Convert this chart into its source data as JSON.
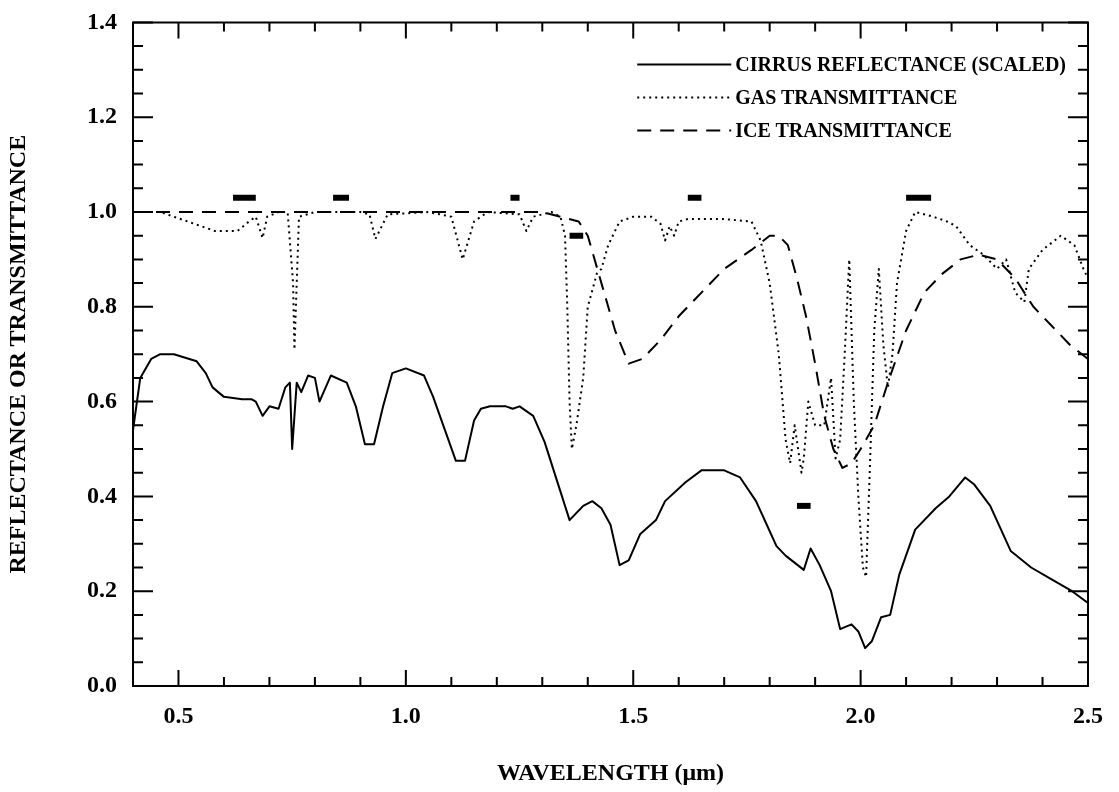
{
  "chart_data": {
    "type": "line",
    "xlabel": "WAVELENGTH (μm)",
    "ylabel": "REFLECTANCE OR TRANSMITTANCE",
    "xlim": [
      0.4,
      2.5
    ],
    "ylim": [
      0,
      1.4
    ],
    "xticks": [
      {
        "value": 0.4,
        "label": null
      },
      {
        "value": 0.5,
        "label": "0.5"
      },
      {
        "value": 0.6,
        "label": null
      },
      {
        "value": 0.7,
        "label": null
      },
      {
        "value": 0.8,
        "label": null
      },
      {
        "value": 0.9,
        "label": null
      },
      {
        "value": 1.0,
        "label": "1.0"
      },
      {
        "value": 1.1,
        "label": null
      },
      {
        "value": 1.2,
        "label": null
      },
      {
        "value": 1.3,
        "label": null
      },
      {
        "value": 1.4,
        "label": null
      },
      {
        "value": 1.5,
        "label": "1.5"
      },
      {
        "value": 1.6,
        "label": null
      },
      {
        "value": 1.7,
        "label": null
      },
      {
        "value": 1.8,
        "label": null
      },
      {
        "value": 1.9,
        "label": null
      },
      {
        "value": 2.0,
        "label": "2.0"
      },
      {
        "value": 2.1,
        "label": null
      },
      {
        "value": 2.2,
        "label": null
      },
      {
        "value": 2.3,
        "label": null
      },
      {
        "value": 2.4,
        "label": null
      },
      {
        "value": 2.5,
        "label": "2.5"
      }
    ],
    "yticks": [
      {
        "value": 0,
        "label": "0.0"
      },
      {
        "value": 0.05,
        "label": null
      },
      {
        "value": 0.1,
        "label": null
      },
      {
        "value": 0.15,
        "label": null
      },
      {
        "value": 0.2,
        "label": "0.2"
      },
      {
        "value": 0.25,
        "label": null
      },
      {
        "value": 0.3,
        "label": null
      },
      {
        "value": 0.35,
        "label": null
      },
      {
        "value": 0.4,
        "label": "0.4"
      },
      {
        "value": 0.45,
        "label": null
      },
      {
        "value": 0.5,
        "label": null
      },
      {
        "value": 0.55,
        "label": null
      },
      {
        "value": 0.6,
        "label": "0.6"
      },
      {
        "value": 0.65,
        "label": null
      },
      {
        "value": 0.7,
        "label": null
      },
      {
        "value": 0.75,
        "label": null
      },
      {
        "value": 0.8,
        "label": "0.8"
      },
      {
        "value": 0.85,
        "label": null
      },
      {
        "value": 0.9,
        "label": null
      },
      {
        "value": 0.95,
        "label": null
      },
      {
        "value": 1.0,
        "label": "1.0"
      },
      {
        "value": 1.05,
        "label": null
      },
      {
        "value": 1.1,
        "label": null
      },
      {
        "value": 1.15,
        "label": null
      },
      {
        "value": 1.2,
        "label": "1.2"
      },
      {
        "value": 1.25,
        "label": null
      },
      {
        "value": 1.3,
        "label": null
      },
      {
        "value": 1.35,
        "label": null
      },
      {
        "value": 1.4,
        "label": "1.4"
      }
    ],
    "grid": false,
    "legend": "top right",
    "marker": "none",
    "series": [
      {
        "name": "CIRRUS REFLECTANCE (SCALED)",
        "color": "#000000",
        "line_style": "solid",
        "x": [
          0.4,
          0.416,
          0.44,
          0.46,
          0.49,
          0.54,
          0.56,
          0.575,
          0.6,
          0.64,
          0.66,
          0.67,
          0.685,
          0.7,
          0.72,
          0.735,
          0.745,
          0.75,
          0.76,
          0.77,
          0.785,
          0.8,
          0.81,
          0.835,
          0.87,
          0.89,
          0.91,
          0.93,
          0.95,
          0.97,
          1.0,
          1.04,
          1.06,
          1.11,
          1.13,
          1.15,
          1.165,
          1.185,
          1.22,
          1.235,
          1.25,
          1.28,
          1.305,
          1.34,
          1.36,
          1.39,
          1.41,
          1.43,
          1.45,
          1.47,
          1.49,
          1.515,
          1.55,
          1.57,
          1.615,
          1.65,
          1.7,
          1.735,
          1.77,
          1.815,
          1.835,
          1.875,
          1.89,
          1.91,
          1.935,
          1.955,
          1.98,
          1.995,
          2.01,
          2.025,
          2.045,
          2.065,
          2.085,
          2.12,
          2.165,
          2.195,
          2.23,
          2.25,
          2.285,
          2.33,
          2.375,
          2.42,
          2.465,
          2.5
        ],
        "values": [
          0.54,
          0.65,
          0.69,
          0.7,
          0.7,
          0.685,
          0.66,
          0.63,
          0.61,
          0.605,
          0.605,
          0.6,
          0.57,
          0.59,
          0.585,
          0.63,
          0.64,
          0.5,
          0.64,
          0.62,
          0.655,
          0.65,
          0.6,
          0.655,
          0.64,
          0.59,
          0.51,
          0.51,
          0.59,
          0.66,
          0.67,
          0.655,
          0.61,
          0.475,
          0.475,
          0.56,
          0.585,
          0.59,
          0.59,
          0.585,
          0.59,
          0.57,
          0.515,
          0.41,
          0.35,
          0.38,
          0.39,
          0.375,
          0.34,
          0.255,
          0.265,
          0.32,
          0.35,
          0.39,
          0.43,
          0.455,
          0.455,
          0.44,
          0.39,
          0.295,
          0.275,
          0.245,
          0.29,
          0.255,
          0.2,
          0.12,
          0.13,
          0.115,
          0.08,
          0.095,
          0.145,
          0.15,
          0.235,
          0.33,
          0.375,
          0.4,
          0.44,
          0.425,
          0.38,
          0.285,
          0.25,
          0.225,
          0.2,
          0.175
        ]
      },
      {
        "name": "GAS TRANSMITTANCE",
        "color": "#000000",
        "line_style": "dotted",
        "x": [
          0.4,
          0.46,
          0.52,
          0.58,
          0.63,
          0.655,
          0.67,
          0.685,
          0.695,
          0.72,
          0.74,
          0.752,
          0.755,
          0.765,
          0.8,
          0.9,
          0.92,
          0.933,
          0.96,
          1.05,
          1.1,
          1.125,
          1.15,
          1.18,
          1.25,
          1.265,
          1.28,
          1.32,
          1.34,
          1.35,
          1.355,
          1.36,
          1.365,
          1.375,
          1.39,
          1.4,
          1.42,
          1.43,
          1.445,
          1.47,
          1.5,
          1.54,
          1.56,
          1.57,
          1.58,
          1.59,
          1.6,
          1.62,
          1.7,
          1.76,
          1.78,
          1.8,
          1.82,
          1.835,
          1.845,
          1.855,
          1.87,
          1.875,
          1.885,
          1.9,
          1.92,
          1.935,
          1.945,
          1.955,
          1.965,
          1.975,
          1.985,
          1.995,
          2.005,
          2.012,
          2.02,
          2.03,
          2.04,
          2.05,
          2.06,
          2.07,
          2.08,
          2.1,
          2.12,
          2.16,
          2.19,
          2.21,
          2.24,
          2.27,
          2.3,
          2.32,
          2.34,
          2.36,
          2.37,
          2.4,
          2.44,
          2.47,
          2.49,
          2.5
        ],
        "values": [
          1.0,
          1.0,
          0.98,
          0.96,
          0.96,
          0.98,
          0.99,
          0.945,
          0.99,
          1.0,
          1.0,
          0.85,
          0.71,
          0.99,
          1.0,
          1.0,
          0.995,
          0.943,
          0.995,
          1.0,
          0.99,
          0.9,
          0.98,
          1.0,
          0.995,
          0.96,
          0.99,
          1.0,
          0.99,
          0.95,
          0.8,
          0.6,
          0.5,
          0.55,
          0.65,
          0.8,
          0.87,
          0.88,
          0.93,
          0.98,
          0.99,
          0.99,
          0.975,
          0.94,
          0.97,
          0.95,
          0.98,
          0.985,
          0.985,
          0.98,
          0.94,
          0.85,
          0.7,
          0.52,
          0.47,
          0.55,
          0.45,
          0.48,
          0.6,
          0.55,
          0.55,
          0.65,
          0.48,
          0.52,
          0.7,
          0.9,
          0.6,
          0.4,
          0.25,
          0.23,
          0.45,
          0.75,
          0.88,
          0.72,
          0.63,
          0.7,
          0.85,
          0.96,
          1.0,
          0.99,
          0.98,
          0.97,
          0.93,
          0.91,
          0.88,
          0.9,
          0.83,
          0.81,
          0.88,
          0.92,
          0.95,
          0.93,
          0.88,
          0.86
        ]
      },
      {
        "name": "ICE TRANSMITTANCE",
        "color": "#000000",
        "line_style": "dashed",
        "x": [
          0.4,
          1.3,
          1.38,
          1.4,
          1.43,
          1.46,
          1.49,
          1.52,
          1.56,
          1.6,
          1.65,
          1.7,
          1.76,
          1.8,
          1.82,
          1.84,
          1.86,
          1.88,
          1.9,
          1.92,
          1.94,
          1.96,
          1.98,
          2.0,
          2.03,
          2.06,
          2.1,
          2.14,
          2.18,
          2.22,
          2.26,
          2.3,
          2.34,
          2.38,
          2.42,
          2.46,
          2.5
        ],
        "values": [
          1.0,
          1.0,
          0.98,
          0.95,
          0.85,
          0.75,
          0.68,
          0.69,
          0.73,
          0.78,
          0.83,
          0.88,
          0.92,
          0.95,
          0.95,
          0.93,
          0.86,
          0.78,
          0.68,
          0.57,
          0.5,
          0.46,
          0.47,
          0.5,
          0.55,
          0.64,
          0.75,
          0.83,
          0.87,
          0.9,
          0.91,
          0.9,
          0.86,
          0.8,
          0.76,
          0.72,
          0.69
        ]
      },
      {
        "color": "#000000",
        "line_style": "solid",
        "x": [
          0.62,
          0.67
        ],
        "values": [
          1.03,
          1.03
        ]
      },
      {
        "color": "#000000",
        "line_style": "solid",
        "x": [
          0.84,
          0.875
        ],
        "values": [
          1.03,
          1.03
        ]
      },
      {
        "color": "#000000",
        "line_style": "solid",
        "x": [
          1.23,
          1.25
        ],
        "values": [
          1.03,
          1.03
        ]
      },
      {
        "color": "#000000",
        "line_style": "solid",
        "x": [
          1.36,
          1.39
        ],
        "values": [
          0.95,
          0.95
        ]
      },
      {
        "color": "#000000",
        "line_style": "solid",
        "x": [
          1.62,
          1.65
        ],
        "values": [
          1.03,
          1.03
        ]
      },
      {
        "color": "#000000",
        "line_style": "solid",
        "x": [
          1.86,
          1.89
        ],
        "values": [
          0.38,
          0.38
        ]
      },
      {
        "color": "#000000",
        "line_style": "solid",
        "x": [
          2.1,
          2.155
        ],
        "values": [
          1.03,
          1.03
        ]
      }
    ]
  }
}
